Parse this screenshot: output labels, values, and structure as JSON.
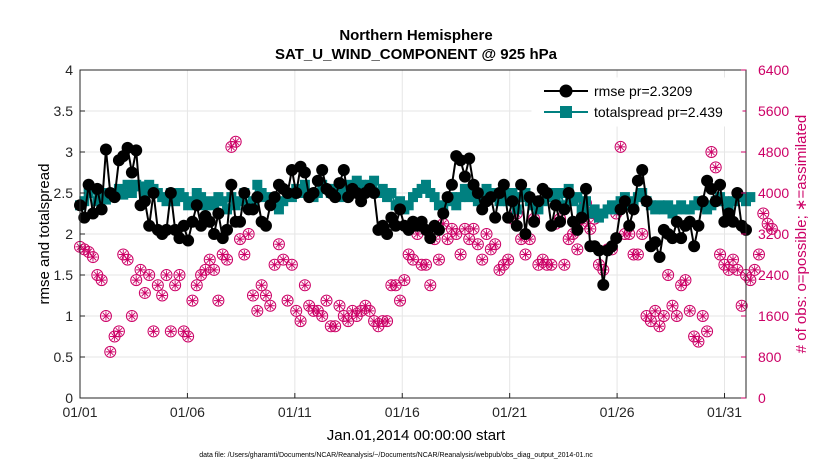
{
  "chart_data": {
    "type": "line",
    "title": "Northern Hemisphere",
    "subtitle": "SAT_U_WIND_COMPONENT @ 925 hPa",
    "xlabel": "Jan.01,2014 00:00:00 start",
    "ylabel_left": "rmse and totalspread",
    "ylabel_right": "# of obs: o=possible; ∗=assimilated",
    "footnote": "data file: /Users/gharamti/Documents/NCAR/Reanalysis/~/Documents/NCAR/Reanalysis/webpub/obs_diag_output_2014-01.nc",
    "x_ticks": [
      "01/01",
      "01/06",
      "01/11",
      "01/16",
      "01/21",
      "01/26",
      "01/31"
    ],
    "x_tick_days": [
      1,
      6,
      11,
      16,
      21,
      26,
      31
    ],
    "x_range_days": [
      1,
      32
    ],
    "ylim_left": [
      0,
      4
    ],
    "y_ticks_left": [
      "0",
      "0.5",
      "1",
      "1.5",
      "2",
      "2.5",
      "3",
      "3.5",
      "4"
    ],
    "ylim_right": [
      0,
      6400
    ],
    "y_ticks_right": [
      "0",
      "800",
      "1600",
      "2400",
      "3200",
      "4000",
      "4800",
      "5600",
      "6400"
    ],
    "grid": true,
    "legend_position": "top-right",
    "colors": {
      "rmse": "#000000",
      "totalspread": "#008080",
      "obs": "#cc0066"
    },
    "series": [
      {
        "name": "rmse pr=2.3209",
        "axis": "left",
        "values": [
          2.35,
          2.2,
          2.6,
          2.25,
          2.55,
          2.3,
          3.03,
          2.5,
          2.45,
          2.9,
          2.95,
          3.05,
          2.75,
          3.02,
          2.35,
          2.4,
          2.1,
          2.5,
          2.05,
          2.0,
          2.05,
          2.5,
          2.05,
          1.95,
          2.1,
          1.92,
          2.15,
          2.35,
          2.1,
          2.22,
          2.15,
          2.0,
          2.25,
          1.95,
          2.05,
          2.6,
          2.15,
          2.15,
          2.5,
          2.3,
          2.3,
          2.45,
          2.15,
          2.1,
          2.35,
          2.45,
          2.6,
          2.55,
          2.5,
          2.78,
          2.5,
          2.82,
          2.75,
          2.45,
          2.5,
          2.65,
          2.78,
          2.55,
          2.5,
          2.45,
          2.62,
          2.78,
          2.45,
          2.55,
          2.5,
          2.4,
          2.5,
          2.55,
          2.5,
          2.05,
          2.1,
          2.0,
          2.2,
          2.1,
          2.3,
          2.1,
          2.05,
          2.15,
          2.1,
          2.15,
          2.05,
          1.95,
          2.1,
          2.05,
          2.25,
          2.45,
          2.6,
          2.95,
          2.9,
          2.7,
          2.92,
          2.6,
          2.5,
          2.3,
          2.4,
          2.45,
          2.2,
          2.5,
          2.6,
          2.2,
          2.4,
          2.1,
          2.6,
          2.0,
          2.45,
          2.15,
          2.4,
          2.55,
          2.5,
          2.1,
          2.35,
          2.15,
          2.3,
          2.5,
          2.15,
          2.05,
          2.2,
          2.55,
          1.85,
          1.85,
          1.8,
          1.38,
          1.8,
          1.85,
          1.95,
          2.3,
          2.4,
          2.1,
          2.3,
          2.65,
          2.78,
          2.4,
          1.85,
          1.9,
          1.72,
          2.05,
          2.0,
          1.95,
          2.15,
          1.95,
          2.1,
          2.15,
          1.85,
          2.1,
          2.4,
          2.65,
          2.55,
          2.4,
          2.6,
          2.15,
          2.25,
          2.15,
          2.5,
          2.1,
          2.05
        ],
        "marker": "circle"
      },
      {
        "name": "totalspread pr=2.439",
        "axis": "left",
        "values": [
          2.35,
          2.4,
          2.5,
          2.55,
          2.4,
          2.5,
          2.42,
          2.45,
          2.5,
          2.55,
          2.48,
          2.6,
          2.5,
          2.6,
          2.58,
          2.5,
          2.6,
          2.55,
          2.5,
          2.45,
          2.4,
          2.5,
          2.4,
          2.5,
          2.45,
          2.35,
          2.4,
          2.5,
          2.45,
          2.35,
          2.4,
          2.35,
          2.45,
          2.4,
          2.3,
          2.45,
          2.35,
          2.4,
          2.5,
          2.35,
          2.4,
          2.6,
          2.5,
          2.45,
          2.4,
          2.35,
          2.3,
          2.4,
          2.5,
          2.45,
          2.55,
          2.5,
          2.6,
          2.5,
          2.45,
          2.5,
          2.6,
          2.55,
          2.5,
          2.55,
          2.45,
          2.5,
          2.6,
          2.55,
          2.65,
          2.6,
          2.55,
          2.6,
          2.65,
          2.5,
          2.55,
          2.45,
          2.5,
          2.35,
          2.4,
          2.3,
          2.35,
          2.45,
          2.5,
          2.55,
          2.6,
          2.5,
          2.45,
          2.35,
          2.3,
          2.4,
          2.45,
          2.35,
          2.45,
          2.55,
          2.45,
          2.5,
          2.4,
          2.45,
          2.55,
          2.5,
          2.45,
          2.4,
          2.5,
          2.4,
          2.5,
          2.3,
          2.45,
          2.5,
          2.4,
          2.35,
          2.3,
          2.4,
          2.45,
          2.5,
          2.4,
          2.5,
          2.35,
          2.55,
          2.4,
          2.45,
          2.3,
          2.4,
          2.25,
          2.3,
          2.2,
          2.25,
          2.3,
          2.35,
          2.3,
          2.4,
          2.45,
          2.35,
          2.4,
          2.45,
          2.5,
          2.4,
          2.35,
          2.3,
          2.35,
          2.3,
          2.35,
          2.25,
          2.3,
          2.35,
          2.3,
          2.3,
          2.35,
          2.4,
          2.35,
          2.3,
          2.35,
          2.4,
          2.45,
          2.4,
          2.3,
          2.4,
          2.45,
          2.45,
          2.4,
          2.45
        ],
        "marker": "square"
      },
      {
        "name": "possible",
        "axis": "right",
        "values": [
          2950,
          2900,
          2850,
          2750,
          2400,
          2300,
          1600,
          900,
          1200,
          1300,
          2800,
          2700,
          1600,
          2300,
          2500,
          2050,
          2400,
          1300,
          2200,
          2000,
          2400,
          1300,
          2200,
          2400,
          1300,
          1200,
          1900,
          2200,
          2400,
          2500,
          2700,
          2500,
          1900,
          2800,
          2700,
          4900,
          5000,
          3100,
          2800,
          3200,
          2000,
          1700,
          2200,
          2000,
          1800,
          2600,
          3000,
          2700,
          1900,
          2600,
          1700,
          1500,
          2200,
          1800,
          1700,
          1700,
          1600,
          1900,
          1400,
          1400,
          1800,
          1600,
          1500,
          1700,
          1600,
          1700,
          1800,
          1700,
          1500,
          1400,
          1500,
          1500,
          2200,
          2200,
          1900,
          2300,
          2800,
          2700,
          3200,
          2600,
          2600,
          2200,
          3100,
          2700,
          3400,
          3100,
          3300,
          3200,
          2800,
          3300,
          3100,
          3300,
          3000,
          2700,
          3200,
          2900,
          3000,
          2500,
          2600,
          2700,
          3500,
          3600,
          3100,
          2800,
          3100,
          3500,
          2600,
          2700,
          2600,
          2600,
          3400,
          3500,
          2600,
          3100,
          3200,
          2900,
          3400,
          3800,
          3300,
          3500,
          2600,
          2500,
          2900,
          2900,
          3600,
          4900,
          3200,
          3200,
          2800,
          2800,
          3200,
          1600,
          1500,
          1700,
          1400,
          1600,
          2400,
          1800,
          1600,
          2200,
          2300,
          1700,
          1200,
          1100,
          1600,
          1300,
          4800,
          4500,
          2800,
          2600,
          2500,
          2700,
          2500,
          1800,
          2400,
          2300,
          2500,
          2800,
          3600,
          3400,
          3300
        ],
        "marker": "open-circle"
      },
      {
        "name": "assimilated",
        "axis": "right",
        "values": [
          2950,
          2900,
          2850,
          2750,
          2400,
          2300,
          1600,
          900,
          1200,
          1300,
          2800,
          2700,
          1600,
          2300,
          2500,
          2050,
          2400,
          1300,
          2200,
          2000,
          2400,
          1300,
          2200,
          2400,
          1300,
          1200,
          1900,
          2200,
          2400,
          2500,
          2700,
          2500,
          1900,
          2800,
          2700,
          4900,
          5000,
          3100,
          2800,
          3200,
          2000,
          1700,
          2200,
          2000,
          1800,
          2600,
          3000,
          2700,
          1900,
          2600,
          1700,
          1500,
          2200,
          1800,
          1700,
          1700,
          1600,
          1900,
          1400,
          1400,
          1800,
          1600,
          1500,
          1700,
          1600,
          1700,
          1800,
          1700,
          1500,
          1400,
          1500,
          1500,
          2200,
          2200,
          1900,
          2300,
          2800,
          2700,
          3200,
          2600,
          2600,
          2200,
          3100,
          2700,
          3400,
          3100,
          3300,
          3200,
          2800,
          3300,
          3100,
          3300,
          3000,
          2700,
          3200,
          2900,
          3000,
          2500,
          2600,
          2700,
          3500,
          3600,
          3100,
          2800,
          3100,
          3500,
          2600,
          2700,
          2600,
          2600,
          3400,
          3500,
          2600,
          3100,
          3200,
          2900,
          3400,
          3800,
          3300,
          3500,
          2600,
          2500,
          2900,
          2900,
          3600,
          4900,
          3200,
          3200,
          2800,
          2800,
          3200,
          1600,
          1500,
          1700,
          1400,
          1600,
          2400,
          1800,
          1600,
          2200,
          2300,
          1700,
          1200,
          1100,
          1600,
          1300,
          4800,
          4500,
          2800,
          2600,
          2500,
          2700,
          2500,
          1800,
          2400,
          2300,
          2500,
          2800,
          3600,
          3400,
          3300
        ],
        "marker": "asterisk"
      }
    ]
  }
}
